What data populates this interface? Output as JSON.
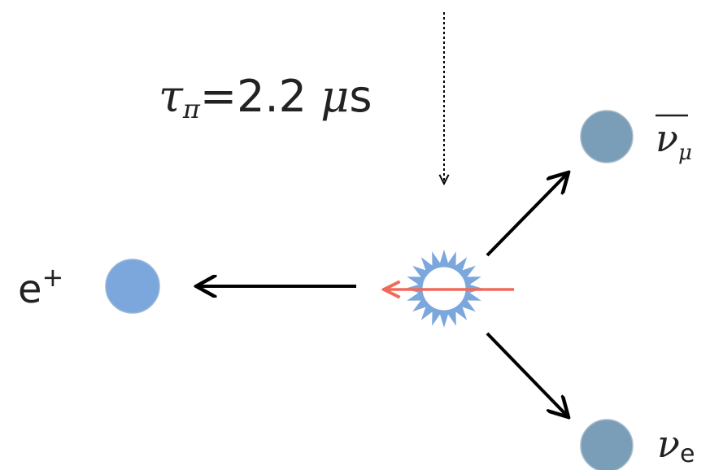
{
  "lifetime": {
    "symbol": "τ",
    "subscript": "π",
    "equals_value": "=2.2 ",
    "unit_mu": "μ",
    "unit_s": "s"
  },
  "particles": {
    "positron": {
      "symbol": "e",
      "superscript": "+",
      "color": "#7ba7dc"
    },
    "antineutrino_mu": {
      "symbol": "ν",
      "subscript": "μ",
      "color": "#7a9db8"
    },
    "neutrino_e": {
      "symbol": "ν",
      "subscript": "e",
      "color": "#7a9db8"
    }
  },
  "colors": {
    "arrow": "#000000",
    "spin_arrow": "#f06a5a",
    "decay_star": "#7ba7dc",
    "text": "#222222"
  }
}
